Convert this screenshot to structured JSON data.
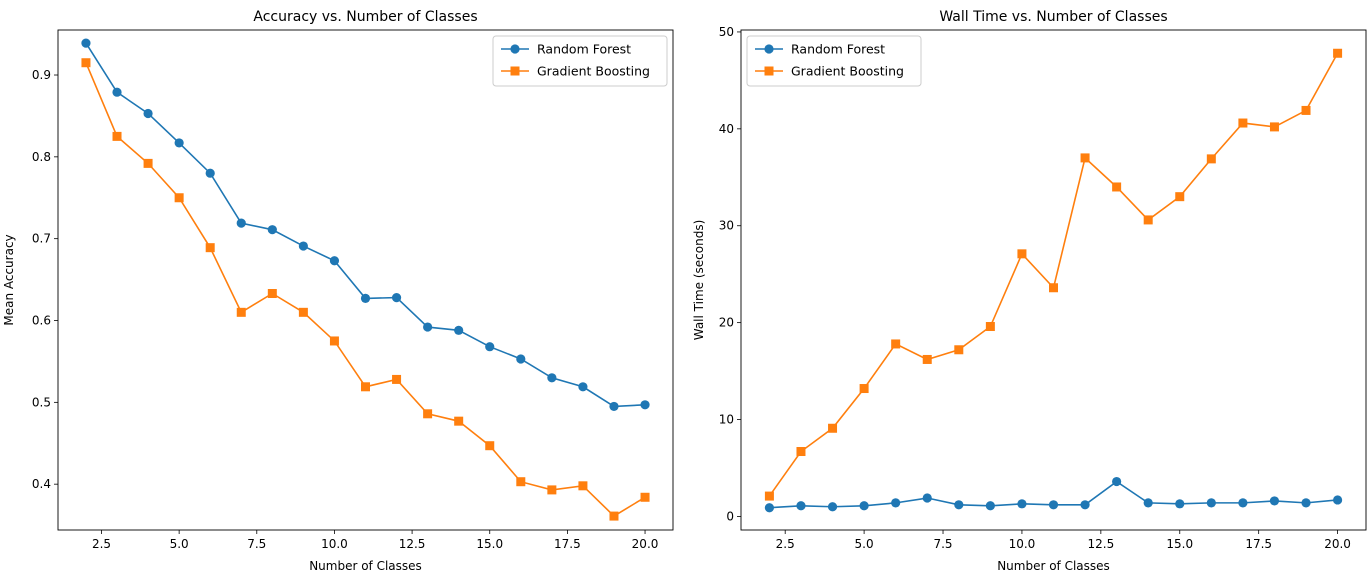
{
  "chart_data": [
    {
      "type": "line",
      "title": "Accuracy vs. Number of Classes",
      "xlabel": "Number of Classes",
      "ylabel": "Mean Accuracy",
      "xlim": [
        1.1,
        20.9
      ],
      "ylim": [
        0.344,
        0.955
      ],
      "xticks": [
        2.5,
        5.0,
        7.5,
        10.0,
        12.5,
        15.0,
        17.5,
        20.0
      ],
      "xtick_labels": [
        "2.5",
        "5.0",
        "7.5",
        "10.0",
        "12.5",
        "15.0",
        "17.5",
        "20.0"
      ],
      "yticks": [
        0.4,
        0.5,
        0.6,
        0.7,
        0.8,
        0.9
      ],
      "ytick_labels": [
        "0.4",
        "0.5",
        "0.6",
        "0.7",
        "0.8",
        "0.9"
      ],
      "legend_position": "top-right",
      "x": [
        2,
        3,
        4,
        5,
        6,
        7,
        8,
        9,
        10,
        11,
        12,
        13,
        14,
        15,
        16,
        17,
        18,
        19,
        20
      ],
      "series": [
        {
          "name": "Random Forest",
          "color": "#1f77b4",
          "marker": "circle",
          "values": [
            0.939,
            0.879,
            0.853,
            0.817,
            0.78,
            0.719,
            0.711,
            0.691,
            0.673,
            0.627,
            0.628,
            0.592,
            0.588,
            0.568,
            0.553,
            0.53,
            0.519,
            0.495,
            0.497
          ]
        },
        {
          "name": "Gradient Boosting",
          "color": "#ff7f0e",
          "marker": "square",
          "values": [
            0.915,
            0.825,
            0.792,
            0.75,
            0.689,
            0.61,
            0.633,
            0.61,
            0.575,
            0.519,
            0.528,
            0.486,
            0.477,
            0.447,
            0.403,
            0.393,
            0.398,
            0.361,
            0.384
          ]
        }
      ]
    },
    {
      "type": "line",
      "title": "Wall Time vs. Number of Classes",
      "xlabel": "Number of Classes",
      "ylabel": "Wall Time (seconds)",
      "xlim": [
        1.1,
        20.9
      ],
      "ylim": [
        -1.4,
        50.2
      ],
      "xticks": [
        2.5,
        5.0,
        7.5,
        10.0,
        12.5,
        15.0,
        17.5,
        20.0
      ],
      "xtick_labels": [
        "2.5",
        "5.0",
        "7.5",
        "10.0",
        "12.5",
        "15.0",
        "17.5",
        "20.0"
      ],
      "yticks": [
        0,
        10,
        20,
        30,
        40,
        50
      ],
      "ytick_labels": [
        "0",
        "10",
        "20",
        "30",
        "40",
        "50"
      ],
      "legend_position": "top-left",
      "x": [
        2,
        3,
        4,
        5,
        6,
        7,
        8,
        9,
        10,
        11,
        12,
        13,
        14,
        15,
        16,
        17,
        18,
        19,
        20
      ],
      "series": [
        {
          "name": "Random Forest",
          "color": "#1f77b4",
          "marker": "circle",
          "values": [
            0.9,
            1.1,
            1.0,
            1.1,
            1.4,
            1.9,
            1.2,
            1.1,
            1.3,
            1.2,
            1.2,
            3.6,
            1.4,
            1.3,
            1.4,
            1.4,
            1.6,
            1.4,
            1.7
          ]
        },
        {
          "name": "Gradient Boosting",
          "color": "#ff7f0e",
          "marker": "square",
          "values": [
            2.1,
            6.7,
            9.1,
            13.2,
            17.8,
            16.2,
            17.2,
            19.6,
            27.1,
            23.6,
            37.0,
            34.0,
            30.6,
            33.0,
            36.9,
            40.6,
            40.2,
            41.9,
            47.8
          ]
        }
      ]
    }
  ]
}
